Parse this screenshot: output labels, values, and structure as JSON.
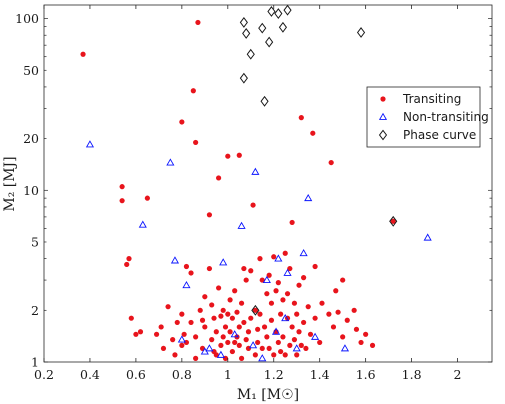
{
  "chart_data": {
    "type": "scatter",
    "title": "",
    "xlabel": "M₁ [M☉]",
    "ylabel": "M₂ [MJ]",
    "xlim": [
      0.2,
      2.15
    ],
    "ylim": [
      1,
      120
    ],
    "yscale": "log",
    "x_ticks": [
      0.2,
      0.4,
      0.6,
      0.8,
      1,
      1.2,
      1.4,
      1.6,
      1.8,
      2
    ],
    "x_tick_labels": [
      "0.2",
      "0.4",
      "0.6",
      "0.8",
      "1",
      "1.2",
      "1.4",
      "1.6",
      "1.8",
      "2"
    ],
    "y_ticks": [
      1,
      2,
      5,
      10,
      20,
      50,
      100
    ],
    "y_tick_labels": [
      "1",
      "2",
      "5",
      "10",
      "20",
      "50",
      "100"
    ],
    "grid": false,
    "legend_position": "right",
    "series": [
      {
        "name": "Transiting",
        "marker": "dot",
        "color": "#e8141c",
        "points": [
          [
            0.37,
            62
          ],
          [
            0.54,
            10.5
          ],
          [
            0.54,
            8.7
          ],
          [
            0.57,
            4.0
          ],
          [
            0.56,
            3.7
          ],
          [
            0.65,
            9.0
          ],
          [
            0.58,
            1.8
          ],
          [
            0.6,
            1.45
          ],
          [
            0.62,
            1.5
          ],
          [
            0.69,
            1.45
          ],
          [
            0.71,
            1.6
          ],
          [
            0.74,
            2.1
          ],
          [
            0.72,
            1.2
          ],
          [
            0.77,
            1.1
          ],
          [
            0.76,
            1.35
          ],
          [
            0.78,
            1.7
          ],
          [
            0.8,
            1.25
          ],
          [
            0.82,
            1.3
          ],
          [
            0.82,
            3.6
          ],
          [
            0.84,
            3.3
          ],
          [
            0.84,
            1.7
          ],
          [
            0.86,
            1.4
          ],
          [
            0.86,
            1.05
          ],
          [
            0.87,
            95
          ],
          [
            0.86,
            19
          ],
          [
            0.88,
            2.0
          ],
          [
            0.89,
            1.2
          ],
          [
            0.9,
            1.6
          ],
          [
            0.9,
            2.4
          ],
          [
            0.92,
            3.5
          ],
          [
            0.92,
            7.2
          ],
          [
            0.93,
            1.35
          ],
          [
            0.93,
            2.15
          ],
          [
            0.94,
            1.8
          ],
          [
            0.94,
            1.15
          ],
          [
            0.95,
            1.5
          ],
          [
            0.95,
            1.1
          ],
          [
            0.96,
            2.7
          ],
          [
            0.96,
            11.8
          ],
          [
            0.97,
            1.85
          ],
          [
            0.97,
            1.25
          ],
          [
            0.98,
            2.0
          ],
          [
            0.98,
            1.4
          ],
          [
            0.99,
            1.6
          ],
          [
            0.99,
            1.05
          ],
          [
            1.0,
            15.8
          ],
          [
            1.0,
            1.9
          ],
          [
            1.0,
            1.3
          ],
          [
            1.01,
            2.3
          ],
          [
            1.01,
            1.5
          ],
          [
            1.02,
            1.8
          ],
          [
            1.02,
            1.15
          ],
          [
            1.03,
            2.6
          ],
          [
            1.03,
            1.3
          ],
          [
            1.04,
            1.4
          ],
          [
            1.04,
            1.95
          ],
          [
            1.05,
            1.6
          ],
          [
            1.05,
            1.25
          ],
          [
            1.06,
            2.2
          ],
          [
            1.06,
            1.05
          ],
          [
            1.07,
            3.5
          ],
          [
            1.07,
            1.7
          ],
          [
            1.08,
            1.35
          ],
          [
            1.08,
            3.0
          ],
          [
            1.09,
            1.5
          ],
          [
            1.09,
            1.2
          ],
          [
            1.1,
            1.8
          ],
          [
            1.1,
            3.4
          ],
          [
            1.11,
            8.2
          ],
          [
            1.12,
            2.0
          ],
          [
            1.12,
            1.1
          ],
          [
            1.13,
            1.55
          ],
          [
            1.13,
            1.3
          ],
          [
            1.14,
            4.0
          ],
          [
            1.14,
            1.9
          ],
          [
            1.15,
            1.2
          ],
          [
            1.15,
            3.0
          ],
          [
            1.16,
            1.6
          ],
          [
            1.17,
            1.4
          ],
          [
            1.17,
            2.5
          ],
          [
            1.18,
            1.2
          ],
          [
            1.18,
            3.2
          ],
          [
            1.19,
            1.75
          ],
          [
            1.19,
            2.2
          ],
          [
            1.2,
            1.1
          ],
          [
            1.2,
            4.1
          ],
          [
            1.21,
            1.5
          ],
          [
            1.21,
            2.6
          ],
          [
            1.22,
            1.3
          ],
          [
            1.22,
            2.9
          ],
          [
            1.23,
            1.9
          ],
          [
            1.23,
            1.15
          ],
          [
            1.24,
            2.3
          ],
          [
            1.24,
            1.4
          ],
          [
            1.25,
            4.3
          ],
          [
            1.25,
            1.1
          ],
          [
            1.26,
            1.8
          ],
          [
            1.26,
            2.5
          ],
          [
            1.27,
            1.25
          ],
          [
            1.27,
            3.5
          ],
          [
            1.28,
            1.6
          ],
          [
            1.28,
            6.5
          ],
          [
            1.29,
            2.2
          ],
          [
            1.29,
            1.35
          ],
          [
            1.3,
            1.1
          ],
          [
            1.3,
            1.9
          ],
          [
            1.31,
            1.5
          ],
          [
            1.31,
            2.8
          ],
          [
            1.32,
            1.25
          ],
          [
            1.32,
            26.5
          ],
          [
            1.33,
            1.7
          ],
          [
            1.33,
            3.1
          ],
          [
            1.34,
            1.2
          ],
          [
            1.35,
            2.1
          ],
          [
            1.36,
            1.45
          ],
          [
            1.37,
            21.5
          ],
          [
            1.38,
            1.8
          ],
          [
            1.38,
            3.6
          ],
          [
            1.4,
            1.3
          ],
          [
            1.41,
            2.2
          ],
          [
            1.44,
            1.9
          ],
          [
            1.45,
            14.5
          ],
          [
            1.46,
            1.6
          ],
          [
            1.47,
            2.6
          ],
          [
            1.48,
            1.95
          ],
          [
            1.5,
            1.4
          ],
          [
            1.5,
            3.0
          ],
          [
            1.52,
            1.75
          ],
          [
            1.55,
            2.0
          ],
          [
            1.56,
            1.55
          ],
          [
            1.58,
            1.3
          ],
          [
            1.6,
            1.45
          ],
          [
            1.63,
            1.25
          ],
          [
            1.72,
            6.6
          ],
          [
            0.8,
            25
          ],
          [
            0.8,
            1.9
          ],
          [
            1.05,
            16
          ],
          [
            0.85,
            38
          ],
          [
            0.81,
            1.45
          ],
          [
            0.89,
            1.75
          ]
        ]
      },
      {
        "name": "Non-transiting",
        "marker": "triangle",
        "color": "#0a14ff",
        "points": [
          [
            0.4,
            18.5
          ],
          [
            0.63,
            6.3
          ],
          [
            0.75,
            14.5
          ],
          [
            0.77,
            3.9
          ],
          [
            0.8,
            1.35
          ],
          [
            0.82,
            2.8
          ],
          [
            0.9,
            1.15
          ],
          [
            0.92,
            1.2
          ],
          [
            0.97,
            1.1
          ],
          [
            0.98,
            3.8
          ],
          [
            1.03,
            1.45
          ],
          [
            1.06,
            6.2
          ],
          [
            1.11,
            1.25
          ],
          [
            1.12,
            12.8
          ],
          [
            1.15,
            1.05
          ],
          [
            1.17,
            3.0
          ],
          [
            1.21,
            1.5
          ],
          [
            1.22,
            4.0
          ],
          [
            1.25,
            1.8
          ],
          [
            1.26,
            3.3
          ],
          [
            1.3,
            1.2
          ],
          [
            1.33,
            4.3
          ],
          [
            1.38,
            1.4
          ],
          [
            1.51,
            1.2
          ],
          [
            1.87,
            5.3
          ],
          [
            1.35,
            9.0
          ]
        ]
      },
      {
        "name": "Phase curve",
        "marker": "diamond",
        "color": "#1a1a1a",
        "points": [
          [
            1.07,
            95
          ],
          [
            1.08,
            82
          ],
          [
            1.1,
            62
          ],
          [
            1.07,
            45
          ],
          [
            1.15,
            88
          ],
          [
            1.18,
            73
          ],
          [
            1.19,
            110
          ],
          [
            1.22,
            107
          ],
          [
            1.24,
            89
          ],
          [
            1.26,
            112
          ],
          [
            1.16,
            33
          ],
          [
            1.58,
            83
          ],
          [
            1.72,
            6.6
          ],
          [
            1.12,
            2.0
          ]
        ]
      }
    ]
  }
}
